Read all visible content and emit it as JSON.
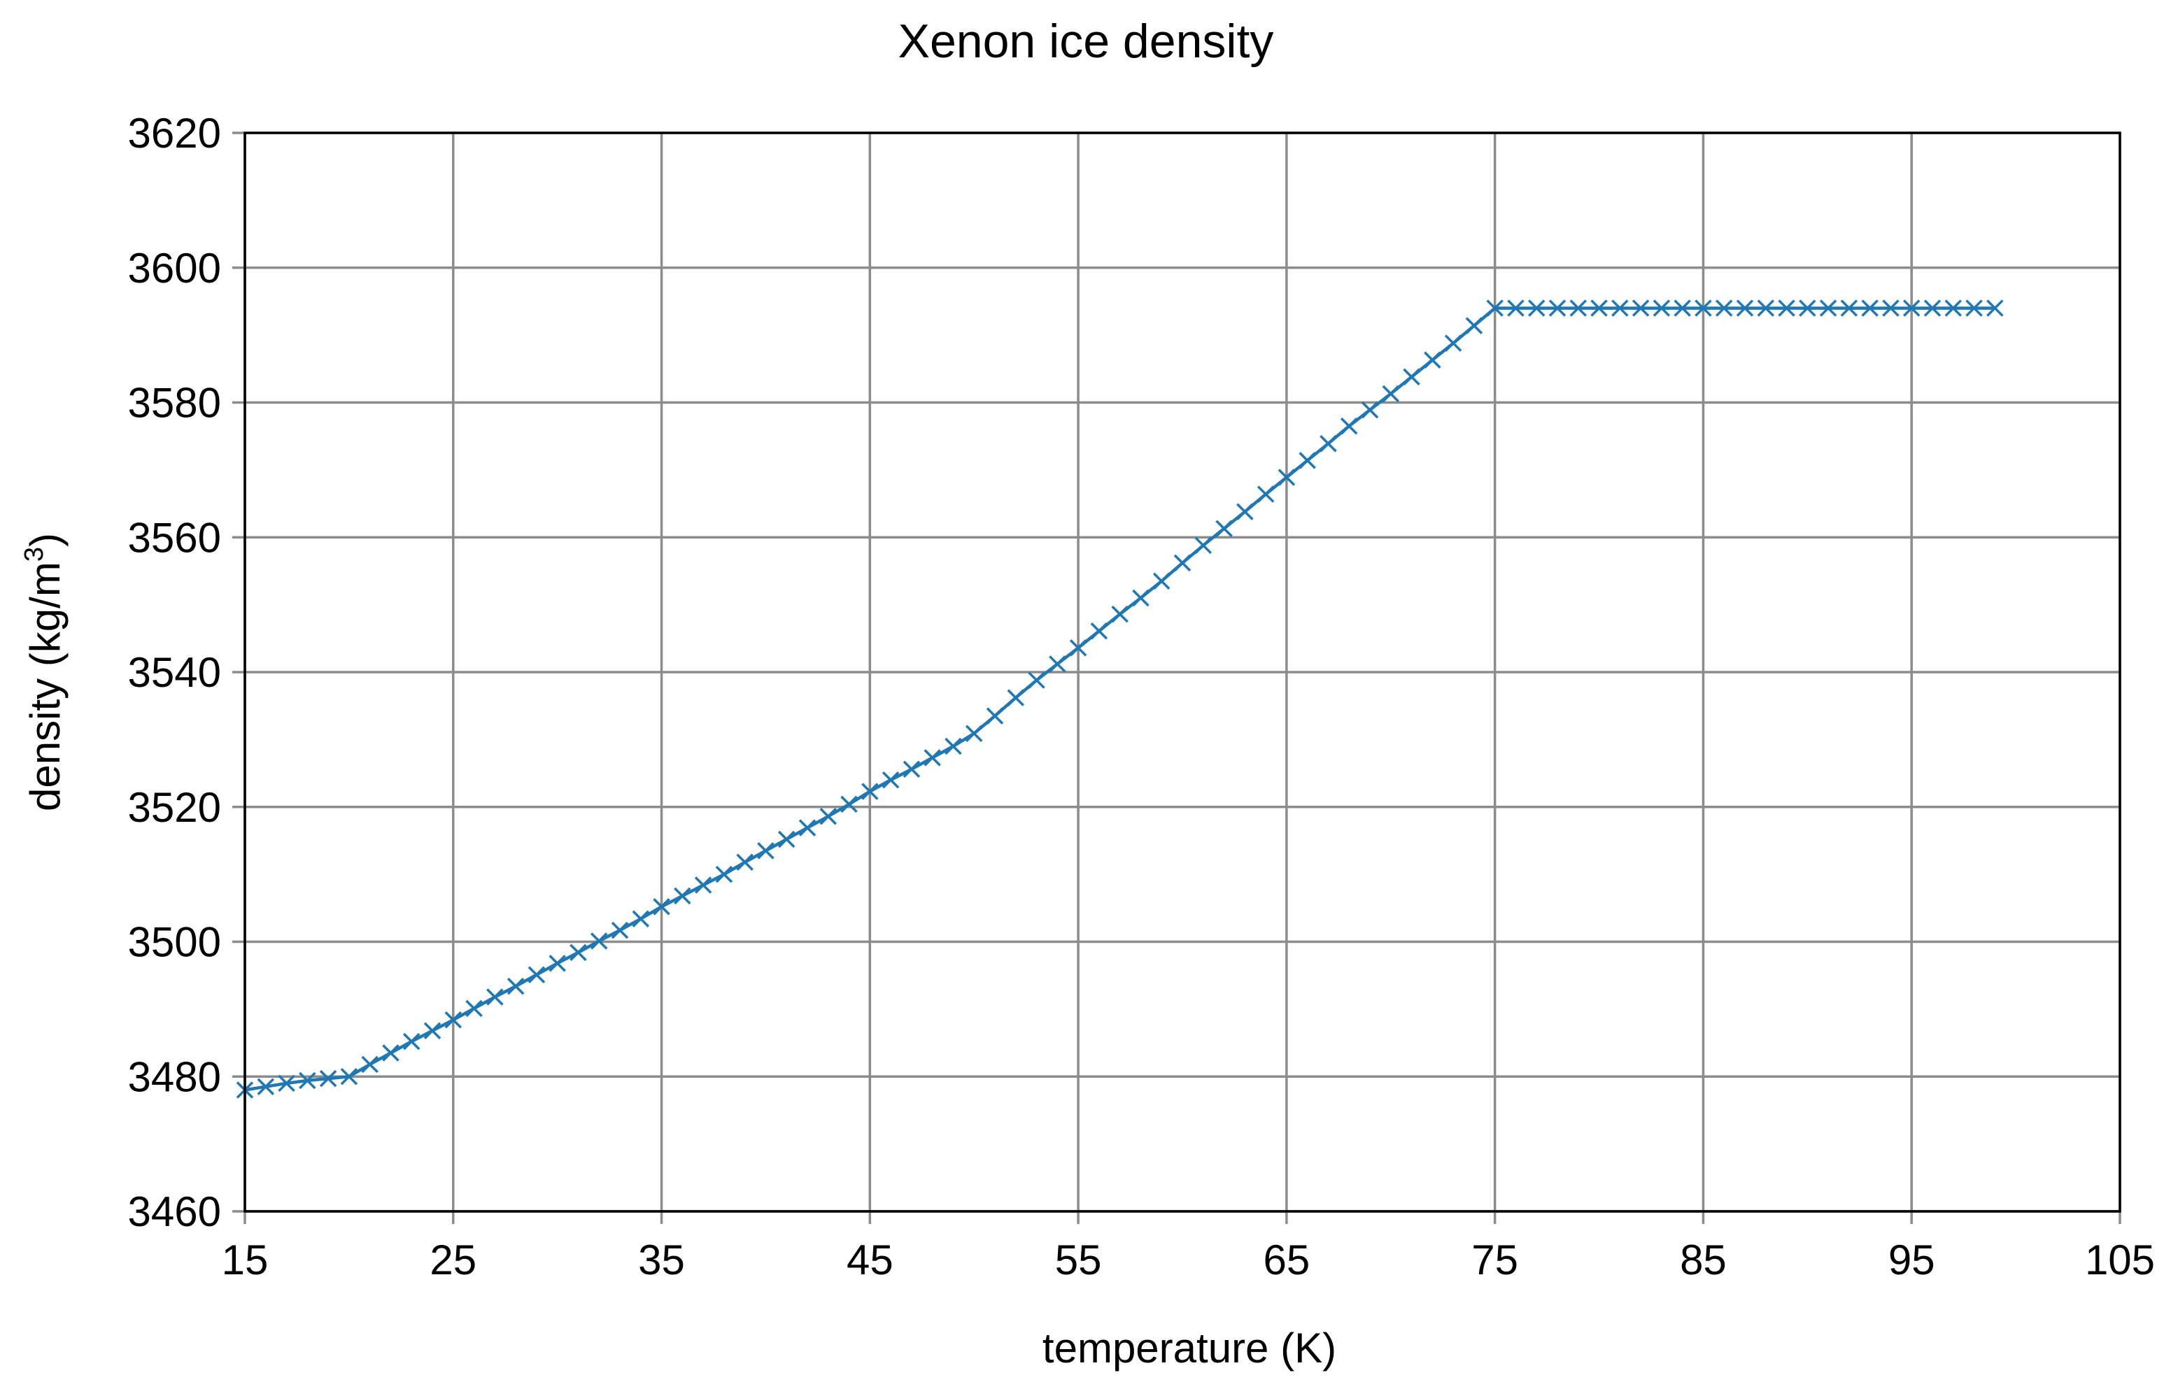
{
  "chart_data": {
    "type": "line",
    "title": "Xenon ice density",
    "xlabel": "temperature  (K)",
    "ylabel_text": "density  (kg/m",
    "ylabel_superscript": "3",
    "ylabel_close": ")",
    "xlim": [
      15,
      105
    ],
    "ylim": [
      3460,
      3620
    ],
    "xticks": [
      15,
      25,
      35,
      45,
      55,
      65,
      75,
      85,
      95,
      105
    ],
    "yticks": [
      3460,
      3480,
      3500,
      3520,
      3540,
      3560,
      3580,
      3600,
      3620
    ],
    "grid": true,
    "marker": "x",
    "series": [
      {
        "color": "#1f77b4",
        "x": [
          15,
          16,
          17,
          18,
          19,
          20,
          21,
          22,
          23,
          24,
          25,
          26,
          27,
          28,
          29,
          30,
          31,
          32,
          33,
          34,
          35,
          36,
          37,
          38,
          39,
          40,
          41,
          42,
          43,
          44,
          45,
          46,
          47,
          48,
          49,
          50,
          51,
          52,
          53,
          54,
          55,
          56,
          57,
          58,
          59,
          60,
          61,
          62,
          63,
          64,
          65,
          66,
          67,
          68,
          69,
          70,
          71,
          72,
          73,
          74,
          75,
          76,
          77,
          78,
          79,
          80,
          81,
          82,
          83,
          84,
          85,
          86,
          87,
          88,
          89,
          90,
          91,
          92,
          93,
          94,
          95,
          96,
          97,
          98,
          99
        ],
        "y": [
          3478,
          3478.5,
          3479,
          3479.4,
          3479.7,
          3480,
          3481.8,
          3483.5,
          3485.2,
          3486.8,
          3488.4,
          3490.1,
          3491.8,
          3493.4,
          3495.1,
          3496.8,
          3498.4,
          3500.1,
          3501.7,
          3503.4,
          3505.2,
          3506.8,
          3508.4,
          3510,
          3511.8,
          3513.5,
          3515.2,
          3516.9,
          3518.6,
          3520.4,
          3522.3,
          3524,
          3525.6,
          3527.3,
          3529,
          3530.9,
          3533.5,
          3536.2,
          3538.8,
          3541.2,
          3543.6,
          3546.1,
          3548.6,
          3551,
          3553.5,
          3556.2,
          3558.8,
          3561.3,
          3563.8,
          3566.4,
          3568.9,
          3571.4,
          3573.9,
          3576.5,
          3578.9,
          3581.3,
          3583.8,
          3586.3,
          3588.8,
          3591.4,
          3594,
          3594,
          3594,
          3594,
          3594,
          3594,
          3594,
          3594,
          3594,
          3594,
          3594,
          3594,
          3594,
          3594,
          3594,
          3594,
          3594,
          3594,
          3594,
          3594,
          3594,
          3594,
          3594,
          3594,
          3594
        ]
      }
    ]
  }
}
